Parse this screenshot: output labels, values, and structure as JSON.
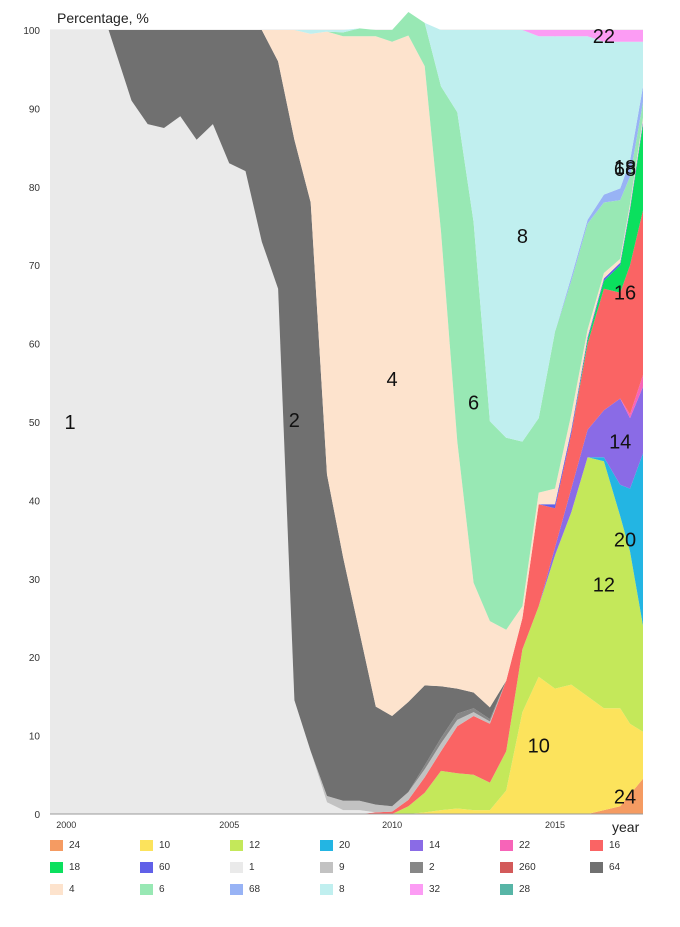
{
  "chart_data": {
    "type": "area",
    "stacked": true,
    "ylabel": "Percentage, %",
    "xlabel": "year",
    "ylim": [
      0,
      100
    ],
    "xlim": [
      1999.5,
      2017.7
    ],
    "y_ticks": [
      "0",
      "10",
      "20",
      "30",
      "40",
      "50",
      "60",
      "70",
      "80",
      "90",
      "100"
    ],
    "x_ticks": [
      "2000",
      "2005",
      "2010",
      "2015"
    ],
    "grid": true,
    "legend_position": "bottom",
    "x": [
      1999.5,
      2001.3,
      2002.0,
      2002.5,
      2003.0,
      2003.5,
      2004.0,
      2004.5,
      2005.0,
      2005.5,
      2006.0,
      2006.5,
      2007.0,
      2007.5,
      2008.0,
      2008.5,
      2009.0,
      2009.5,
      2010.0,
      2010.5,
      2011.0,
      2011.5,
      2012.0,
      2012.5,
      2013.0,
      2013.5,
      2014.0,
      2014.5,
      2015.0,
      2015.5,
      2016.0,
      2016.5,
      2017.0,
      2017.3,
      2017.7
    ],
    "series": [
      {
        "name": "24",
        "color": "#f59b62",
        "label_on_chart": "24",
        "values": [
          0,
          0,
          0,
          0,
          0,
          0,
          0,
          0,
          0,
          0,
          0,
          0,
          0,
          0,
          0,
          0,
          0,
          0,
          0,
          0,
          0,
          0,
          0,
          0,
          0,
          0,
          0,
          0,
          0,
          0,
          0,
          0.5,
          1,
          2.5,
          4.5
        ]
      },
      {
        "name": "10",
        "color": "#fce35c",
        "label_on_chart": "10",
        "values": [
          0,
          0,
          0,
          0,
          0,
          0,
          0,
          0,
          0,
          0,
          0,
          0,
          0,
          0,
          0,
          0,
          0,
          0,
          0,
          0,
          0.2,
          0.5,
          0.7,
          0.5,
          0.5,
          3,
          13,
          17.5,
          16,
          16.5,
          15,
          13,
          12.5,
          9,
          6
        ]
      },
      {
        "name": "12",
        "color": "#c4e85a",
        "label_on_chart": "12",
        "values": [
          0,
          0,
          0,
          0,
          0,
          0,
          0,
          0,
          0,
          0,
          0,
          0,
          0,
          0,
          0,
          0,
          0,
          0,
          0,
          1,
          2.5,
          5,
          4.5,
          4.5,
          3.5,
          5,
          8,
          9,
          17,
          22,
          30.5,
          31.5,
          24.5,
          22,
          13.5
        ]
      },
      {
        "name": "20",
        "color": "#23b5e3",
        "label_on_chart": "20",
        "values": [
          0,
          0,
          0,
          0,
          0,
          0,
          0,
          0,
          0,
          0,
          0,
          0,
          0,
          0,
          0,
          0,
          0,
          0,
          0,
          0,
          0,
          0,
          0,
          0,
          0,
          0,
          0,
          0,
          0,
          0,
          0,
          0.5,
          4,
          8,
          22
        ]
      },
      {
        "name": "14",
        "color": "#8a6be6",
        "label_on_chart": "14",
        "values": [
          0,
          0,
          0,
          0,
          0,
          0,
          0,
          0,
          0,
          0,
          0,
          0,
          0,
          0,
          0,
          0,
          0,
          0,
          0,
          0,
          0,
          0,
          0,
          0,
          0,
          0,
          0,
          0,
          1,
          3,
          3.5,
          6,
          11,
          9,
          8.5
        ]
      },
      {
        "name": "22",
        "color": "#f764b8",
        "label_on_chart": "",
        "values": [
          0,
          0,
          0,
          0,
          0,
          0,
          0,
          0,
          0,
          0,
          0,
          0,
          0,
          0,
          0,
          0,
          0,
          0,
          0,
          0,
          0,
          0,
          0,
          0,
          0,
          0,
          0,
          0,
          0,
          0,
          0,
          0,
          0,
          0.5,
          1.5
        ]
      },
      {
        "name": "16",
        "color": "#fa6464",
        "label_on_chart": "16",
        "values": [
          0,
          0,
          0,
          0,
          0,
          0,
          0,
          0,
          0,
          0,
          0,
          0,
          0,
          0,
          0,
          0,
          0,
          0.2,
          0.3,
          0.8,
          2,
          2.5,
          6,
          7.5,
          7.5,
          9,
          4,
          13,
          5,
          7,
          11,
          15.5,
          13.5,
          19,
          21
        ]
      },
      {
        "name": "18",
        "color": "#0be05e",
        "label_on_chart": "18",
        "values": [
          0,
          0,
          0,
          0,
          0,
          0,
          0,
          0,
          0,
          0,
          0,
          0,
          0,
          0,
          0,
          0,
          0,
          0,
          0,
          0,
          0,
          0,
          0,
          0,
          0,
          0,
          0,
          0,
          0,
          0,
          0.5,
          1,
          3.5,
          7,
          11
        ]
      },
      {
        "name": "60",
        "color": "#6060e8",
        "label_on_chart": "",
        "values": [
          0,
          0,
          0,
          0,
          0,
          0,
          0,
          0,
          0,
          0,
          0,
          0,
          0,
          0,
          0,
          0,
          0,
          0,
          0,
          0,
          0,
          0,
          0,
          0,
          0,
          0,
          0,
          0,
          0.5,
          0.5,
          0.3,
          0.3,
          0.3,
          0.3,
          0.3
        ]
      },
      {
        "name": "1",
        "color": "#eaeaea",
        "label_on_chart": "1",
        "values": [
          100,
          100,
          91,
          88,
          87.5,
          89,
          86,
          88,
          83,
          82,
          73,
          67,
          14.5,
          8,
          1.5,
          0.5,
          0.5,
          0,
          0,
          0,
          0,
          0,
          0,
          0,
          0,
          0,
          0,
          0,
          0,
          0,
          0,
          0,
          0,
          0,
          0
        ]
      },
      {
        "name": "9",
        "color": "#c2c2c2",
        "label_on_chart": "",
        "values": [
          0,
          0,
          0,
          0,
          0,
          0,
          0,
          0,
          0,
          0,
          0,
          0,
          0,
          0,
          0.8,
          1.2,
          1.2,
          1,
          0.7,
          1,
          1,
          1,
          0.8,
          0.5,
          0.3,
          0,
          0,
          0,
          0,
          0,
          0,
          0,
          0,
          0,
          0
        ]
      },
      {
        "name": "2",
        "color": "#878787",
        "label_on_chart": "",
        "values": [
          0,
          0,
          0,
          0,
          0,
          0,
          0,
          0,
          0,
          0,
          0,
          0,
          0,
          0,
          0,
          0,
          0,
          0,
          0,
          0,
          0.5,
          0.7,
          0.8,
          0.5,
          0.3,
          0,
          0,
          0,
          0,
          0,
          0,
          0,
          0,
          0,
          0
        ]
      },
      {
        "name": "260",
        "color": "#d35a5a",
        "label_on_chart": "",
        "values": [
          0,
          0,
          0,
          0,
          0,
          0,
          0,
          0,
          0,
          0,
          0,
          0,
          0,
          0,
          0,
          0,
          0,
          0,
          0,
          0,
          0,
          0,
          0,
          0,
          0,
          0,
          0,
          0,
          0,
          0,
          0,
          0,
          0,
          0,
          0
        ]
      },
      {
        "name": "64",
        "color": "#707070",
        "label_on_chart": "2",
        "values": [
          0,
          0,
          9,
          12,
          12.5,
          11,
          14,
          12,
          17,
          18,
          27,
          29,
          71.5,
          70,
          41,
          31,
          21.5,
          12.5,
          11.5,
          11.5,
          10.2,
          6.6,
          3.2,
          2,
          1.5,
          0,
          0,
          0,
          0,
          0,
          0,
          0,
          0,
          0,
          0
        ]
      },
      {
        "name": "4",
        "color": "#fde3cd",
        "label_on_chart": "4",
        "values": [
          0,
          0,
          0,
          0,
          0,
          0,
          0,
          0,
          0,
          0,
          0,
          4,
          14,
          21.5,
          56.5,
          66.5,
          76,
          85.5,
          86,
          85,
          79,
          58,
          31.5,
          14,
          11,
          6.5,
          1.5,
          1.5,
          2,
          2,
          1,
          0.7,
          0.5,
          0.5,
          0.5
        ]
      },
      {
        "name": "6",
        "color": "#98e8b4",
        "label_on_chart": "6",
        "values": [
          0,
          0,
          0,
          0,
          0,
          0,
          0,
          0,
          0,
          0,
          0,
          0,
          0,
          0,
          0,
          0.5,
          1,
          0.8,
          1.5,
          3,
          5.5,
          18.5,
          42,
          46,
          25.5,
          24.5,
          21,
          9.5,
          20,
          17,
          13.5,
          9,
          7.5,
          3.5,
          2
        ]
      },
      {
        "name": "68",
        "color": "#98b3f5",
        "label_on_chart": "68",
        "values": [
          0,
          0,
          0,
          0,
          0,
          0,
          0,
          0,
          0,
          0,
          0,
          0,
          0,
          0,
          0,
          0,
          0,
          0,
          0,
          0,
          0,
          0,
          0,
          0,
          0,
          0,
          0,
          0,
          0,
          0.5,
          0.5,
          1,
          1.5,
          2,
          2
        ]
      },
      {
        "name": "8",
        "color": "#c0efef",
        "label_on_chart": "8",
        "values": [
          0,
          0,
          0,
          0,
          0,
          0,
          0,
          0,
          0,
          0,
          0,
          0,
          0,
          0,
          0,
          0,
          0,
          0,
          0,
          0,
          0,
          0,
          0,
          0,
          0,
          0,
          0,
          0,
          0,
          0,
          0,
          0,
          0,
          0,
          0
        ]
      },
      {
        "name": "32",
        "color": "#fc9cf4",
        "label_on_chart": "22",
        "values": [
          0,
          0,
          0,
          0,
          0,
          0,
          0,
          0,
          0,
          0,
          0,
          0,
          0,
          0,
          0,
          0,
          0,
          0,
          0,
          0,
          0,
          0,
          0,
          0,
          0,
          0,
          0,
          0,
          0,
          0,
          0,
          0,
          0,
          0,
          0
        ]
      },
      {
        "name": "28",
        "color": "#57b5a6",
        "label_on_chart": "",
        "values": [
          0,
          0,
          0,
          0,
          0,
          0,
          0,
          0,
          0,
          0,
          0,
          0,
          0,
          0,
          0,
          0,
          0,
          0,
          0,
          0,
          0,
          0,
          0,
          0,
          0,
          0,
          0,
          0,
          0,
          0,
          0,
          0,
          0,
          0,
          0
        ]
      }
    ]
  }
}
